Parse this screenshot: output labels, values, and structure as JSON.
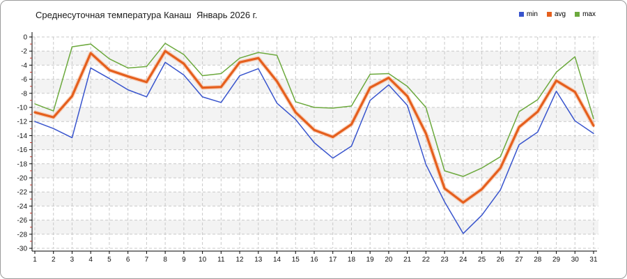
{
  "title": "Среднесуточная температура Канаш  Январь 2026 г.",
  "chart_data": {
    "type": "line",
    "title": "Среднесуточная температура Канаш  Январь 2026 г.",
    "xlabel": "",
    "ylabel": "",
    "x": [
      1,
      2,
      3,
      4,
      5,
      6,
      7,
      8,
      9,
      10,
      11,
      12,
      13,
      14,
      15,
      16,
      17,
      18,
      19,
      20,
      21,
      22,
      23,
      24,
      25,
      26,
      27,
      28,
      29,
      30,
      31
    ],
    "ylim": [
      -30,
      0
    ],
    "ytick_step": 2,
    "yticks": [
      0,
      -2,
      -4,
      -6,
      -8,
      -10,
      -12,
      -14,
      -16,
      -18,
      -20,
      -22,
      -24,
      -26,
      -28,
      -30
    ],
    "grid": true,
    "grid_style": "dashed",
    "legend_position": "top-right",
    "band_color": "#f3f3f3",
    "grid_color": "#c9c9c9",
    "axis_color": "#000000",
    "minor_tick_color": "#c0362c",
    "series": [
      {
        "name": "min",
        "color": "#3854cd",
        "width": 1.5,
        "values": [
          -12.0,
          -13.0,
          -14.3,
          -4.4,
          -5.9,
          -7.5,
          -8.5,
          -3.6,
          -5.4,
          -8.5,
          -9.3,
          -5.5,
          -4.5,
          -9.4,
          -11.7,
          -15.0,
          -17.2,
          -15.5,
          -9.0,
          -6.8,
          -9.7,
          -18.1,
          -23.4,
          -27.9,
          -25.3,
          -21.7,
          -15.3,
          -13.5,
          -7.7,
          -11.9,
          -13.7
        ]
      },
      {
        "name": "avg",
        "color": "#e55f1d",
        "halo": "#f7b089",
        "width": 3.2,
        "values": [
          -10.7,
          -11.4,
          -8.4,
          -2.3,
          -4.7,
          -5.6,
          -6.4,
          -2.0,
          -3.8,
          -7.2,
          -7.1,
          -3.6,
          -3.0,
          -6.3,
          -10.7,
          -13.2,
          -14.2,
          -12.4,
          -7.2,
          -5.8,
          -8.4,
          -13.7,
          -21.5,
          -23.5,
          -21.6,
          -18.6,
          -12.8,
          -10.6,
          -6.2,
          -7.8,
          -12.6
        ]
      },
      {
        "name": "max",
        "color": "#6ca93d",
        "width": 1.5,
        "values": [
          -9.5,
          -10.5,
          -1.4,
          -1.0,
          -3.1,
          -4.4,
          -4.2,
          -0.9,
          -2.5,
          -5.5,
          -5.2,
          -3.0,
          -2.2,
          -2.6,
          -9.2,
          -10.0,
          -10.1,
          -9.8,
          -5.3,
          -5.2,
          -7.0,
          -10.0,
          -19.0,
          -19.8,
          -18.6,
          -17.0,
          -10.6,
          -8.9,
          -5.0,
          -2.8,
          -11.6
        ]
      }
    ]
  }
}
